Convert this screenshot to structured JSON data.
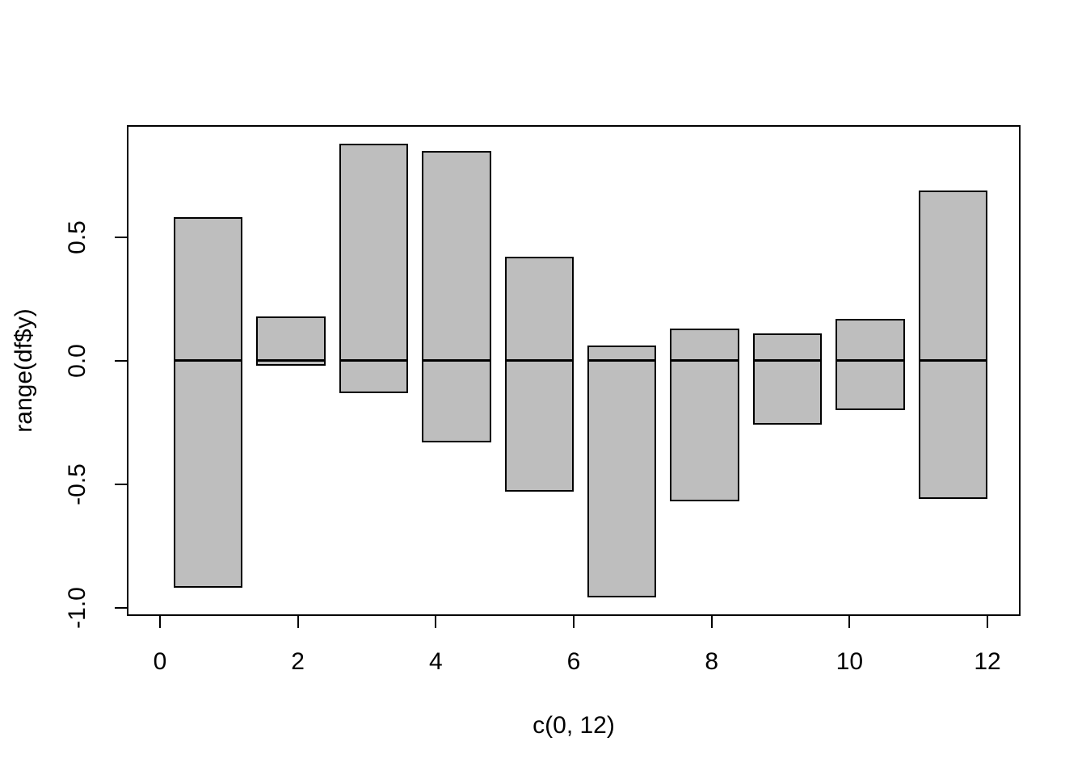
{
  "chart_data": {
    "type": "bar",
    "title": "",
    "xlabel": "c(0, 12)",
    "ylabel": "range(df$y)",
    "xlim": [
      -0.48,
      12.48
    ],
    "ylim": [
      -1.0336,
      0.9536
    ],
    "x_ticks": [
      0,
      2,
      4,
      6,
      8,
      10,
      12
    ],
    "x_tick_labels": [
      "0",
      "2",
      "4",
      "6",
      "8",
      "10",
      "12"
    ],
    "y_ticks": [
      -1.0,
      -0.5,
      0.0,
      0.5
    ],
    "y_tick_labels": [
      "-1.0",
      "-0.5",
      "0.0",
      "0.5"
    ],
    "grid": false,
    "legend": false,
    "baseline": 0,
    "bar_fill": "#bebebe",
    "bar_border": "#000000",
    "bars": [
      {
        "x_left": 0.2,
        "x_right": 1.2,
        "ymin": -0.92,
        "ymax": 0.58
      },
      {
        "x_left": 1.4,
        "x_right": 2.4,
        "ymin": -0.02,
        "ymax": 0.18
      },
      {
        "x_left": 2.6,
        "x_right": 3.6,
        "ymin": -0.13,
        "ymax": 0.88
      },
      {
        "x_left": 3.8,
        "x_right": 4.8,
        "ymin": -0.33,
        "ymax": 0.85
      },
      {
        "x_left": 5.0,
        "x_right": 6.0,
        "ymin": -0.53,
        "ymax": 0.42
      },
      {
        "x_left": 6.2,
        "x_right": 7.2,
        "ymin": -0.96,
        "ymax": 0.06
      },
      {
        "x_left": 7.4,
        "x_right": 8.4,
        "ymin": -0.57,
        "ymax": 0.13
      },
      {
        "x_left": 8.6,
        "x_right": 9.6,
        "ymin": -0.26,
        "ymax": 0.11
      },
      {
        "x_left": 9.8,
        "x_right": 10.8,
        "ymin": -0.2,
        "ymax": 0.17
      },
      {
        "x_left": 11.0,
        "x_right": 12.0,
        "ymin": -0.56,
        "ymax": 0.69
      }
    ]
  }
}
